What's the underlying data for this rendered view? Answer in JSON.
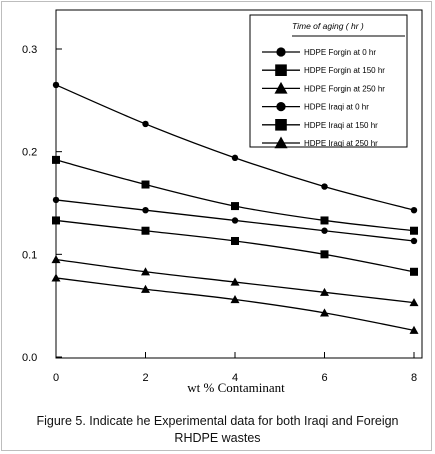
{
  "chart_data": {
    "type": "line",
    "title": "",
    "xlabel": "wt % Contaminant",
    "ylabel": "",
    "x": [
      0,
      2,
      4,
      6,
      8
    ],
    "xlim": [
      0,
      8
    ],
    "ylim": [
      0,
      0.33
    ],
    "x_ticks": [
      "0",
      "2",
      "4",
      "6",
      "8"
    ],
    "y_ticks": [
      "0.0",
      "0.1",
      "0.2",
      "0.3"
    ],
    "y_tick_values": [
      0,
      0.1,
      0.2,
      0.3
    ],
    "grid": false,
    "legend_title": "Time of aging ( hr )",
    "legend_position": "top-right",
    "series": [
      {
        "name": "HDPE Forgin at 0 hr",
        "marker": "circle",
        "values": [
          0.265,
          0.227,
          0.194,
          0.166,
          0.143
        ]
      },
      {
        "name": "HDPE Forgin at 150 hr",
        "marker": "square",
        "values": [
          0.192,
          0.168,
          0.147,
          0.133,
          0.123
        ]
      },
      {
        "name": "HDPE Forgin at 250 hr",
        "marker": "triangle",
        "values": [
          0.095,
          0.083,
          0.073,
          0.063,
          0.053
        ]
      },
      {
        "name": "HDPE Iraqi at 0 hr",
        "marker": "circle",
        "values": [
          0.153,
          0.143,
          0.133,
          0.123,
          0.113
        ]
      },
      {
        "name": "HDPE Iraqi at 150 hr",
        "marker": "square",
        "values": [
          0.133,
          0.123,
          0.113,
          0.1,
          0.083
        ]
      },
      {
        "name": "HDPE Iraqi at 250 hr",
        "marker": "triangle",
        "values": [
          0.077,
          0.066,
          0.056,
          0.043,
          0.026
        ]
      }
    ]
  },
  "caption": {
    "line1": "Figure 5. Indicate he Experimental data for both Iraqi and Foreign",
    "line2": "RHDPE wastes"
  }
}
